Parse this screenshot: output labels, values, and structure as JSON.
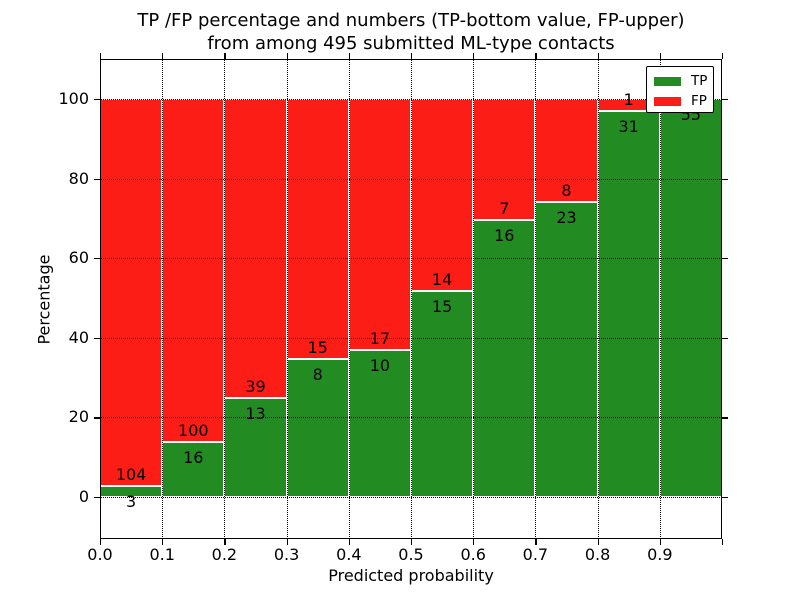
{
  "title": {
    "line1": "TP /FP percentage and numbers (TP-bottom value, FP-upper)",
    "line2": "from among 495 submitted ML-type contacts"
  },
  "axes": {
    "xlabel": "Predicted probability",
    "ylabel": "Percentage",
    "xtick_labels": [
      "0.0",
      "0.1",
      "0.2",
      "0.3",
      "0.4",
      "0.5",
      "0.6",
      "0.7",
      "0.8",
      "0.9"
    ],
    "ytick_labels": [
      "0",
      "20",
      "40",
      "60",
      "80",
      "100"
    ]
  },
  "legend": {
    "items": [
      {
        "label": "TP",
        "color": "#228b22"
      },
      {
        "label": "FP",
        "color": "#fb1d16"
      }
    ]
  },
  "colors": {
    "tp_green": "#228b22",
    "fp_red": "#fb1d16",
    "grid": "#000000",
    "bar_edge": "#ffffff"
  },
  "chart_data": {
    "type": "bar",
    "stacked": true,
    "normalized": "each bar stacks to 100%",
    "title": "TP /FP percentage and numbers (TP-bottom value, FP-upper) from among 495 submitted ML-type contacts",
    "xlabel": "Predicted probability",
    "ylabel": "Percentage",
    "total_contacts": 495,
    "bin_width": 0.1,
    "x_bin_starts": [
      0.0,
      0.1,
      0.2,
      0.3,
      0.4,
      0.5,
      0.6,
      0.7,
      0.8,
      0.9
    ],
    "series": [
      {
        "name": "TP",
        "color": "#228b22",
        "counts": [
          3,
          16,
          13,
          8,
          10,
          15,
          16,
          23,
          31,
          55
        ]
      },
      {
        "name": "FP",
        "color": "#fb1d16",
        "counts": [
          104,
          100,
          39,
          15,
          17,
          14,
          7,
          8,
          1,
          0
        ]
      }
    ],
    "tp_percent_derived": [
      2.8,
      13.8,
      25.0,
      34.8,
      37.0,
      51.7,
      69.6,
      74.2,
      96.9,
      100.0
    ],
    "xlim": [
      0.0,
      1.0
    ],
    "ylim_display": [
      -11,
      110
    ],
    "yticks": [
      0,
      20,
      40,
      60,
      80,
      100
    ],
    "grid": "dotted black, horizontal at yticks and vertical at xticks, drawn over bars",
    "legend_position": "upper right"
  }
}
